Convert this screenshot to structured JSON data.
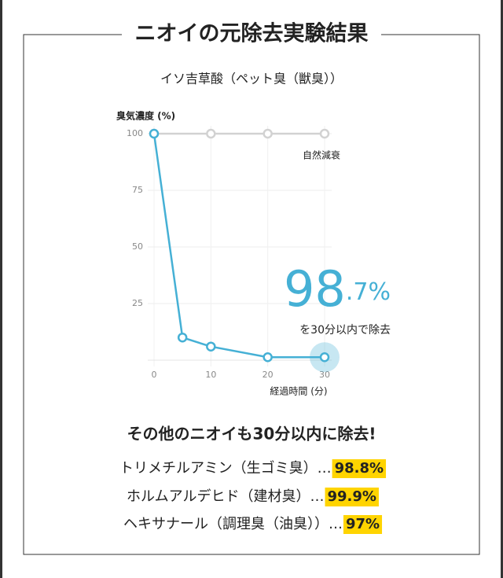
{
  "title": "ニオイの元除去実験結果",
  "chart_data": {
    "type": "line",
    "title": "イソ吉草酸（ペット臭（獣臭））",
    "y_label": "臭気濃度 (%)",
    "x_label": "経過時間 (分)",
    "series": [
      {
        "name": "自然減衰",
        "color": "#d2d2d2",
        "x": [
          0,
          10,
          20,
          30
        ],
        "values": [
          100,
          100,
          100,
          100
        ]
      },
      {
        "color": "#45b0d5",
        "x": [
          0,
          5,
          10,
          20,
          30
        ],
        "values": [
          100,
          10,
          6,
          1.3,
          1.3
        ]
      }
    ],
    "xlim": [
      0,
      30
    ],
    "xticks": [
      0,
      10,
      20,
      30
    ],
    "ylim": [
      0,
      100
    ],
    "yticks": [
      25,
      50,
      75,
      100
    ],
    "grid": true,
    "annotations": [
      {
        "value": 98.7,
        "label": "98.7%"
      },
      {
        "text": "を30分以内で除去"
      }
    ]
  },
  "results": {
    "heading": "その他のニオイも30分以内に除去!",
    "items": [
      {
        "label": "トリメチルアミン（生ゴミ臭）…",
        "value": "98.8%"
      },
      {
        "label": "ホルムアルデヒド（建材臭）…",
        "value": "99.9%"
      },
      {
        "label": "ヘキサナール（調理臭（油臭））…",
        "value": "97%"
      }
    ]
  }
}
